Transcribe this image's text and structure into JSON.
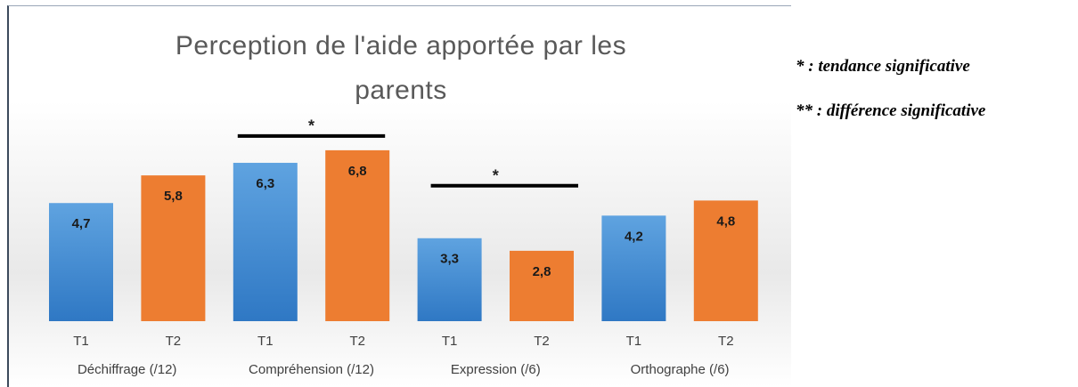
{
  "chart_data": {
    "type": "bar",
    "title": "Perception de l'aide apportée par les parents",
    "categories": [
      "Déchiffrage (/12)",
      "Compréhension (/12)",
      "Expression (/6)",
      "Orthographe (/6)"
    ],
    "series": [
      {
        "name": "T1",
        "color": "#4a8fd4",
        "values": [
          4.7,
          6.3,
          3.3,
          4.2
        ],
        "value_labels": [
          "4,7",
          "6,3",
          "3,3",
          "4,2"
        ]
      },
      {
        "name": "T2",
        "color": "#ed7d31",
        "values": [
          5.8,
          6.8,
          2.8,
          4.8
        ],
        "value_labels": [
          "5,8",
          "6,8",
          "2,8",
          "4,8"
        ]
      }
    ],
    "ylim": [
      0,
      8
    ],
    "annotations": [
      {
        "text": "*",
        "category": 1
      },
      {
        "text": "*",
        "category": 2
      }
    ]
  },
  "notes": [
    "* : tendance significative",
    "** : différence significative"
  ]
}
